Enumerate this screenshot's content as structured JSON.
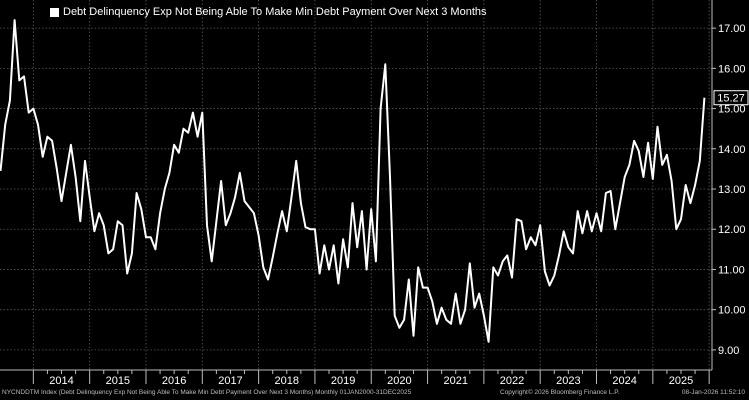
{
  "footer": {
    "description": "NYCNDDTM Index (Debt Delinquency Exp Not Being Able To Make Min Debt Payment Over Next 3 Months) Monthly 01JAN2000-31DEC2025",
    "copyright": "Copyright© 2026 Bloomberg Finance L.P.",
    "timestamp": "08-Jan-2026 11:52:10"
  },
  "colors": {
    "background": "#000000",
    "line": "#ffffff",
    "grid": "#5a5a5a",
    "text": "#ffffff"
  },
  "chart_data": {
    "type": "line",
    "title": "",
    "xlabel": "",
    "ylabel": "",
    "ylim": [
      8.5,
      17.7
    ],
    "grid": true,
    "y_axis_position": "right",
    "legend_placement": "top-left",
    "last_value_label": "15.27",
    "x_tick_labels": [
      "2014",
      "2015",
      "2016",
      "2017",
      "2018",
      "2019",
      "2020",
      "2021",
      "2022",
      "2023",
      "2024",
      "2025"
    ],
    "y_tick_labels": [
      "9.00",
      "10.00",
      "11.00",
      "12.00",
      "13.00",
      "14.00",
      "15.00",
      "16.00",
      "17.00"
    ],
    "series": [
      {
        "name": "Debt Delinquency Exp Not Being Able To Make Min Debt Payment Over Next 3 Months",
        "x_start": "2013-06",
        "frequency": "monthly",
        "values": [
          13.45,
          14.6,
          15.2,
          17.2,
          15.7,
          15.8,
          14.9,
          15.0,
          14.6,
          13.8,
          14.3,
          14.2,
          13.5,
          12.7,
          13.4,
          14.1,
          13.3,
          12.2,
          13.7,
          12.8,
          11.95,
          12.4,
          12.1,
          11.4,
          11.5,
          12.2,
          12.1,
          10.9,
          11.4,
          12.9,
          12.5,
          11.8,
          11.8,
          11.5,
          12.4,
          13.0,
          13.4,
          14.1,
          13.9,
          14.5,
          14.4,
          14.9,
          14.3,
          14.9,
          12.1,
          11.2,
          12.2,
          13.2,
          12.1,
          12.4,
          12.8,
          13.4,
          12.7,
          12.55,
          12.4,
          11.85,
          11.05,
          10.75,
          11.3,
          11.9,
          12.45,
          11.95,
          12.8,
          13.7,
          12.65,
          12.05,
          12.0,
          12.0,
          10.9,
          11.6,
          11.0,
          11.6,
          10.65,
          11.75,
          11.05,
          12.65,
          11.55,
          12.45,
          11.0,
          12.5,
          11.2,
          15.0,
          16.1,
          13.3,
          9.85,
          9.55,
          9.75,
          10.75,
          9.35,
          11.05,
          10.55,
          10.55,
          10.2,
          9.65,
          10.05,
          9.75,
          9.65,
          10.4,
          9.65,
          10.0,
          11.15,
          10.05,
          10.4,
          9.85,
          9.2,
          11.05,
          10.85,
          11.2,
          11.35,
          10.8,
          12.25,
          12.2,
          11.5,
          11.8,
          11.6,
          12.1,
          10.95,
          10.6,
          10.85,
          11.35,
          11.95,
          11.55,
          11.4,
          12.45,
          11.9,
          12.45,
          11.95,
          12.4,
          11.95,
          12.9,
          12.95,
          12.0,
          12.65,
          13.3,
          13.6,
          14.2,
          13.95,
          13.3,
          14.15,
          13.25,
          14.55,
          13.6,
          13.85,
          13.2,
          12.0,
          12.25,
          13.1,
          12.65,
          13.1,
          13.7,
          15.27
        ]
      }
    ]
  }
}
